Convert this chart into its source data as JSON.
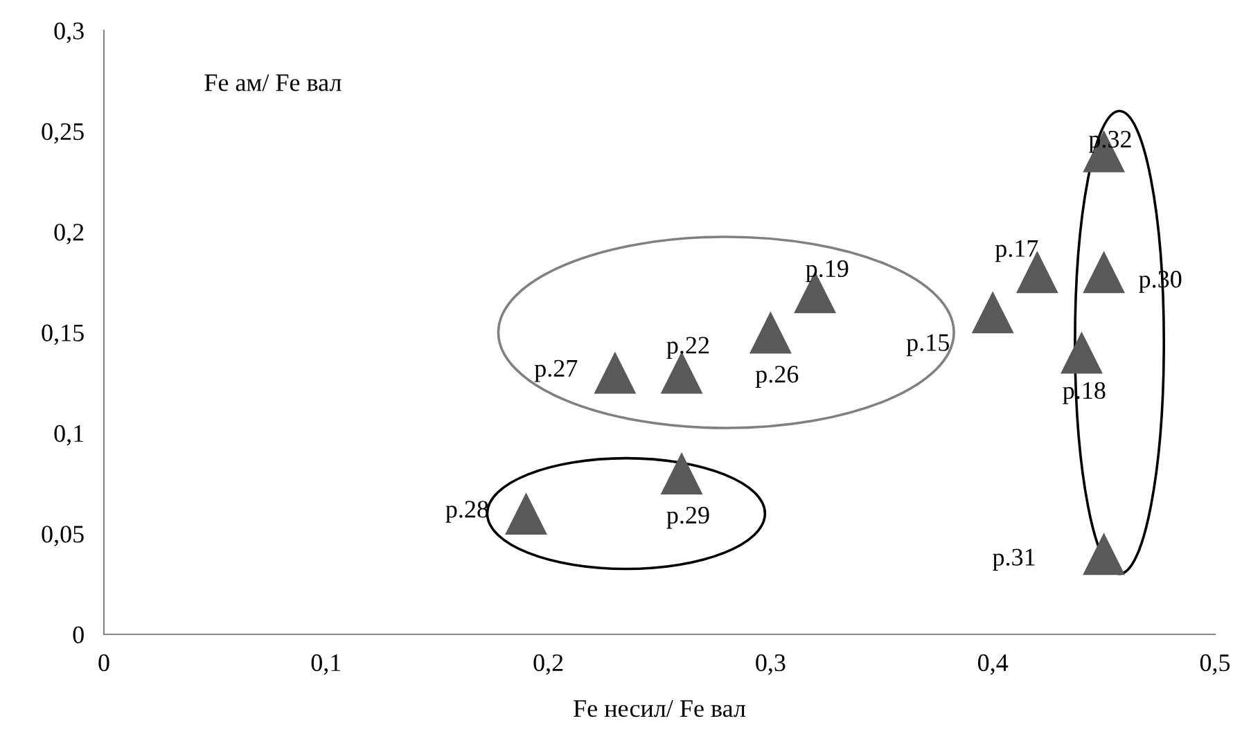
{
  "chart_data": {
    "type": "scatter",
    "xlabel": "Fe несил/ Fe вал",
    "ylabel": "Fe ам/ Fe вал",
    "series": [
      {
        "color": "#595959",
        "x": [
          0.19,
          0.26,
          0.23,
          0.26,
          0.3,
          0.32,
          0.4,
          0.42,
          0.45,
          0.44,
          0.45,
          0.45
        ],
        "values": [
          0.06,
          0.08,
          0.13,
          0.13,
          0.15,
          0.17,
          0.16,
          0.18,
          0.18,
          0.14,
          0.24,
          0.04
        ]
      }
    ],
    "marker": "triangle",
    "grid": false,
    "legend": false,
    "xlim": [
      0,
      0.5
    ],
    "xticks": [
      0,
      {
        "value": 0.1,
        "label": "0,1"
      },
      {
        "value": 0.2,
        "label": "0,2"
      },
      {
        "value": 0.3,
        "label": "0,3"
      },
      {
        "value": 0.4,
        "label": "0,4"
      },
      {
        "value": 0.5,
        "label": "0,5"
      }
    ],
    "ylim": [
      0,
      0.3
    ],
    "yticks": [
      0,
      {
        "value": 0.05,
        "label": "0,05"
      },
      {
        "value": 0.1,
        "label": "0,1"
      },
      {
        "value": 0.15,
        "label": "0,15"
      },
      {
        "value": 0.2,
        "label": "0,2"
      },
      {
        "value": 0.25,
        "label": "0,25"
      },
      {
        "value": 0.3,
        "label": "0,3"
      }
    ],
    "annotations": [
      {
        "text": "р.28",
        "x": 0.19,
        "y": 0.06
      },
      {
        "text": "р.29",
        "x": 0.26,
        "y": 0.08
      },
      {
        "text": "р.27",
        "x": 0.23,
        "y": 0.13
      },
      {
        "text": "р.22",
        "x": 0.26,
        "y": 0.13
      },
      {
        "text": "р.26",
        "x": 0.3,
        "y": 0.15
      },
      {
        "text": "р.19",
        "x": 0.32,
        "y": 0.17
      },
      {
        "text": "р.15",
        "x": 0.4,
        "y": 0.16
      },
      {
        "text": "р.17",
        "x": 0.42,
        "y": 0.18
      },
      {
        "text": "р.30",
        "x": 0.45,
        "y": 0.18
      },
      {
        "text": "р.18",
        "x": 0.44,
        "y": 0.14
      },
      {
        "text": "р.32",
        "x": 0.45,
        "y": 0.24
      },
      {
        "text": "р.31",
        "x": 0.45,
        "y": 0.04
      }
    ]
  }
}
